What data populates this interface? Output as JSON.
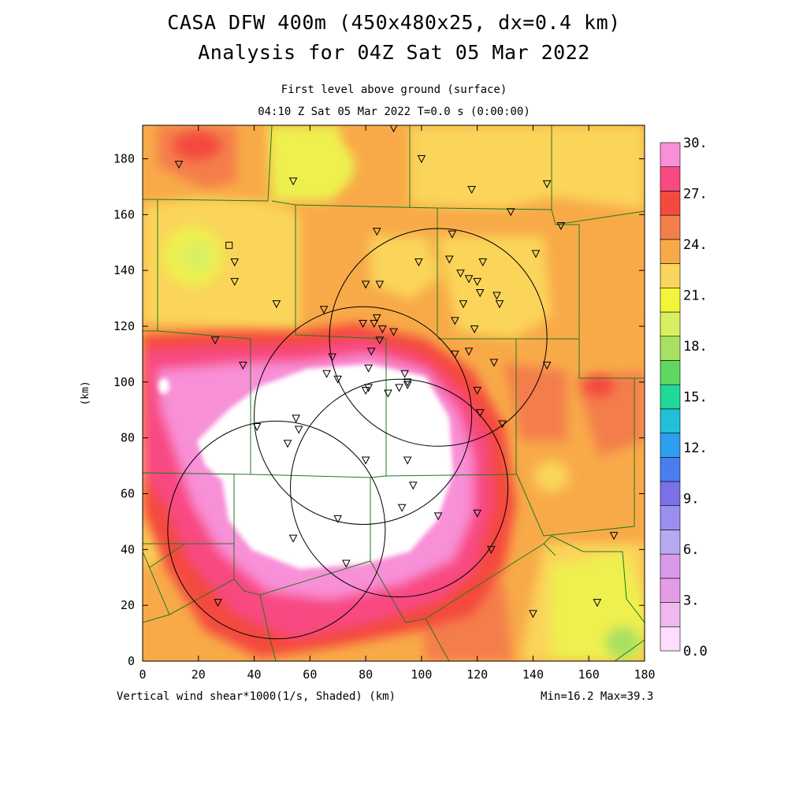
{
  "title": {
    "line1": "CASA DFW 400m (450x480x25, dx=0.4 km)",
    "line2": "Analysis for 04Z Sat 05 Mar 2022"
  },
  "subtitle": {
    "level": "First level above ground (surface)",
    "time": "04:10 Z Sat 05 Mar 2022    T=0.0 s (0:00:00)"
  },
  "footer": {
    "variable": "Vertical wind shear*1000(1/s, Shaded)  (km)",
    "minmax": "Min=16.2 Max=39.3"
  },
  "chart_data": {
    "type": "heatmap",
    "variable": "Vertical wind shear*1000(1/s, Shaded)",
    "x_axis": {
      "label": "(km)",
      "range": [
        0,
        180
      ],
      "ticks": [
        0,
        20,
        40,
        60,
        80,
        100,
        120,
        140,
        160,
        180
      ]
    },
    "y_axis": {
      "label": "(km)",
      "range": [
        0,
        192
      ],
      "ticks": [
        0,
        20,
        40,
        60,
        80,
        100,
        120,
        140,
        160,
        180
      ]
    },
    "min": 16.2,
    "max": 39.3,
    "colorbar": {
      "levels": [
        0,
        1.5,
        3,
        4.5,
        6,
        7.5,
        9,
        10.5,
        12,
        13.5,
        15,
        16.5,
        18,
        19.5,
        21,
        22.5,
        24,
        25.5,
        27,
        28.5,
        30
      ],
      "tick_labels": [
        {
          "value": 0,
          "text": "0.0"
        },
        {
          "value": 3,
          "text": "3."
        },
        {
          "value": 6,
          "text": "6."
        },
        {
          "value": 9,
          "text": "9."
        },
        {
          "value": 12,
          "text": "12."
        },
        {
          "value": 15,
          "text": "15."
        },
        {
          "value": 18,
          "text": "18."
        },
        {
          "value": 21,
          "text": "21."
        },
        {
          "value": 24,
          "text": "24."
        },
        {
          "value": 27,
          "text": "27."
        },
        {
          "value": 30,
          "text": "30."
        }
      ],
      "colors": [
        "#ffddff",
        "#f0b8ef",
        "#e59ce6",
        "#d89ae8",
        "#b8a8f0",
        "#9a8ef0",
        "#7a70e8",
        "#4a7ef0",
        "#2e9ef0",
        "#22c0d8",
        "#20d898",
        "#60d860",
        "#a8e060",
        "#d8f060",
        "#f4f43a",
        "#fad55a",
        "#f8aa48",
        "#f47e4c",
        "#f44a3e",
        "#f84a82",
        "#f890d8"
      ]
    },
    "radar_rings": [
      {
        "center_x": 106,
        "center_y": 116,
        "radius_km": 39
      },
      {
        "center_x": 79,
        "center_y": 88,
        "radius_km": 39
      },
      {
        "center_x": 92,
        "center_y": 62,
        "radius_km": 39
      },
      {
        "center_x": 48,
        "center_y": 47,
        "radius_km": 39
      }
    ],
    "stations_triangles": [
      [
        13,
        178
      ],
      [
        54,
        172
      ],
      [
        118,
        169
      ],
      [
        145,
        171
      ],
      [
        132,
        161
      ],
      [
        150,
        156
      ],
      [
        84,
        154
      ],
      [
        111,
        153
      ],
      [
        141,
        146
      ],
      [
        99,
        143
      ],
      [
        110,
        144
      ],
      [
        114,
        139
      ],
      [
        122,
        143
      ],
      [
        117,
        137
      ],
      [
        120,
        136
      ],
      [
        121,
        132
      ],
      [
        127,
        131
      ],
      [
        128,
        128
      ],
      [
        115,
        128
      ],
      [
        33,
        143
      ],
      [
        33,
        136
      ],
      [
        48,
        128
      ],
      [
        65,
        126
      ],
      [
        80,
        135
      ],
      [
        85,
        135
      ],
      [
        79,
        121
      ],
      [
        83,
        121
      ],
      [
        84,
        123
      ],
      [
        85,
        115
      ],
      [
        86,
        119
      ],
      [
        90,
        118
      ],
      [
        112,
        122
      ],
      [
        119,
        119
      ],
      [
        26,
        115
      ],
      [
        36,
        106
      ],
      [
        68,
        109
      ],
      [
        82,
        111
      ],
      [
        81,
        105
      ],
      [
        117,
        111
      ],
      [
        112,
        110
      ],
      [
        126,
        107
      ],
      [
        145,
        106
      ],
      [
        66,
        103
      ],
      [
        70,
        101
      ],
      [
        94,
        103
      ],
      [
        95,
        100
      ],
      [
        95,
        99
      ],
      [
        92,
        98
      ],
      [
        81,
        98
      ],
      [
        80,
        97
      ],
      [
        88,
        96
      ],
      [
        120,
        97
      ],
      [
        121,
        89
      ],
      [
        129,
        85
      ],
      [
        55,
        87
      ],
      [
        56,
        83
      ],
      [
        41,
        84
      ],
      [
        52,
        78
      ],
      [
        80,
        72
      ],
      [
        95,
        72
      ],
      [
        97,
        63
      ],
      [
        93,
        55
      ],
      [
        106,
        52
      ],
      [
        120,
        53
      ],
      [
        70,
        51
      ],
      [
        54,
        44
      ],
      [
        125,
        40
      ],
      [
        73,
        35
      ],
      [
        169,
        45
      ],
      [
        27,
        21
      ],
      [
        163,
        21
      ],
      [
        140,
        17
      ],
      [
        90,
        191
      ],
      [
        100,
        180
      ]
    ],
    "stations_squares": [
      [
        31,
        149
      ]
    ]
  }
}
